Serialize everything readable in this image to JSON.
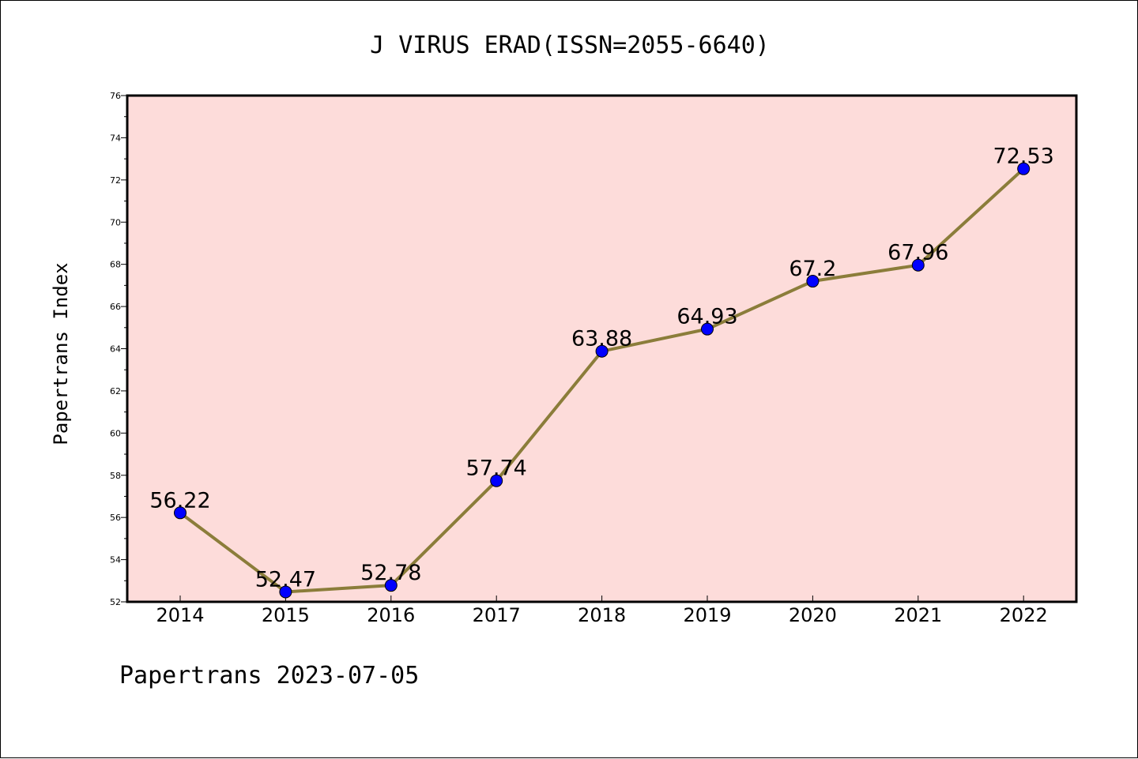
{
  "chart_data": {
    "type": "line",
    "title": "J VIRUS ERAD(ISSN=2055-6640)",
    "xlabel": "",
    "ylabel": "Papertrans Index",
    "categories": [
      "2014",
      "2015",
      "2016",
      "2017",
      "2018",
      "2019",
      "2020",
      "2021",
      "2022"
    ],
    "series": [
      {
        "values": [
          56.22,
          52.47,
          52.78,
          57.74,
          63.88,
          64.93,
          67.2,
          67.96,
          72.53
        ],
        "labels": [
          "56.22",
          "52.47",
          "52.78",
          "57.74",
          "63.88",
          "64.93",
          "67.2",
          "67.96",
          "72.53"
        ]
      }
    ],
    "ylim": [
      52,
      76
    ],
    "yticks": [
      "52",
      "54",
      "56",
      "58",
      "60",
      "62",
      "64",
      "66",
      "68",
      "70",
      "72",
      "74",
      "76"
    ],
    "grid": false,
    "legend": "none",
    "colors": {
      "plot_background": "#fddcda",
      "line": "#8b7d3a",
      "marker": "#0000ff"
    }
  },
  "footer": "Papertrans 2023-07-05"
}
